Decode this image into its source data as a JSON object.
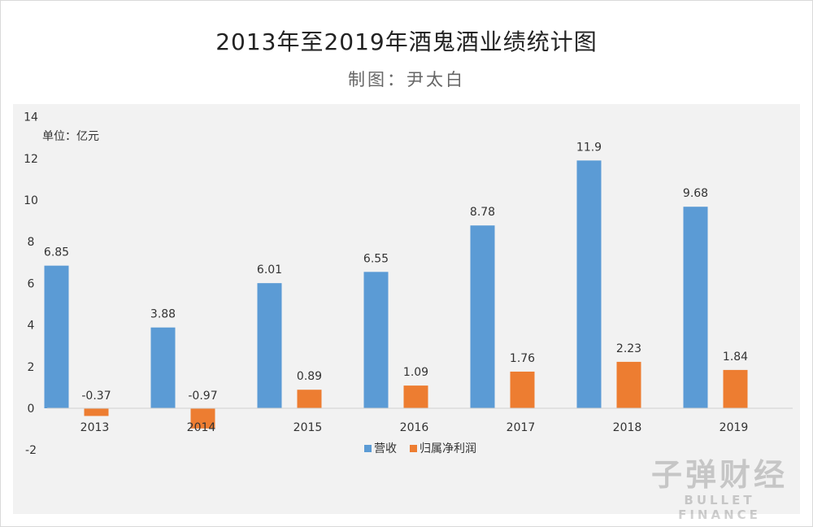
{
  "header": {
    "title": "2013年至2019年酒鬼酒业绩统计图",
    "subtitle": "制图：尹太白"
  },
  "unit_label": "单位：亿元",
  "watermark": {
    "cn": "子弹财经",
    "en": "BULLET FINANCE"
  },
  "colors": {
    "revenue": "#5b9bd5",
    "profit": "#ed7d31",
    "panel": "#f2f2f2"
  },
  "chart_data": {
    "type": "bar",
    "categories": [
      "2013",
      "2014",
      "2015",
      "2016",
      "2017",
      "2018",
      "2019"
    ],
    "series": [
      {
        "name": "营收",
        "values": [
          6.85,
          3.88,
          6.01,
          6.55,
          8.78,
          11.9,
          9.68
        ]
      },
      {
        "name": "归属净利润",
        "values": [
          -0.37,
          -0.97,
          0.89,
          1.09,
          1.76,
          2.23,
          1.84
        ]
      }
    ],
    "ylim": [
      -2,
      14
    ],
    "yticks": [
      "-2",
      "0",
      "2",
      "4",
      "6",
      "8",
      "10",
      "12",
      "14"
    ],
    "data_labels": [
      [
        "6.85",
        "3.88",
        "6.01",
        "6.55",
        "8.78",
        "11.9",
        "9.68"
      ],
      [
        "-0.37",
        "-0.97",
        "0.89",
        "1.09",
        "1.76",
        "2.23",
        "1.84"
      ]
    ],
    "grid": false,
    "legend": "bottom-center"
  }
}
